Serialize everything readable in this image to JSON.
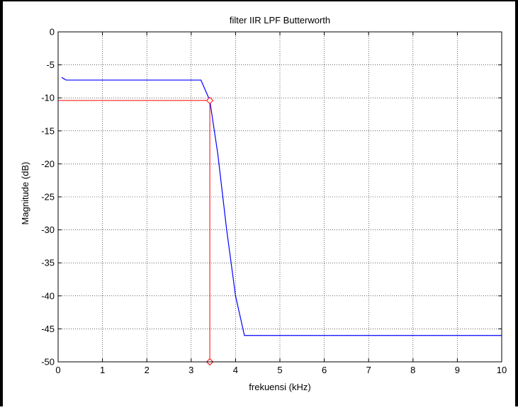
{
  "chart_data": {
    "type": "line",
    "title": "filter IIR LPF Butterworth",
    "xlabel": "frekuensi (kHz)",
    "ylabel": "Magnitude (dB)",
    "xlim": [
      0,
      10
    ],
    "ylim": [
      -50,
      0
    ],
    "xticks": [
      "0",
      "1",
      "2",
      "3",
      "4",
      "5",
      "6",
      "7",
      "8",
      "9",
      "10"
    ],
    "yticks": [
      "0",
      "-5",
      "-10",
      "-15",
      "-20",
      "-25",
      "-30",
      "-35",
      "-40",
      "-45",
      "-50"
    ],
    "grid": true,
    "colors": {
      "response": "#0000ff",
      "marker": "#ff0000",
      "frame": "#000000",
      "grid": "#000000"
    },
    "series": [
      {
        "color": "#0000ff",
        "x": [
          0.08,
          0.18,
          0.4,
          1.0,
          2.0,
          3.0,
          3.22,
          3.42,
          3.6,
          3.8,
          4.0,
          4.2,
          10.0
        ],
        "y": [
          -6.9,
          -7.3,
          -7.3,
          -7.3,
          -7.3,
          -7.3,
          -7.3,
          -10.4,
          -18.5,
          -30.0,
          -40.0,
          -46.0,
          -46.0
        ]
      }
    ],
    "annotations": [
      {
        "type": "crosshair",
        "color": "#ff0000",
        "x": 3.42,
        "y": -10.4,
        "markers": [
          {
            "x": 3.42,
            "y": -10.4
          },
          {
            "x": 3.42,
            "y": -50
          }
        ]
      }
    ]
  }
}
